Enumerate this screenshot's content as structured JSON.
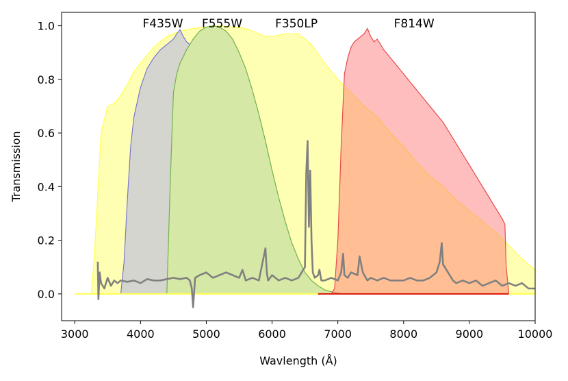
{
  "chart_data": {
    "type": "area",
    "xlabel": "Wavlength (Å)",
    "ylabel": "Transmission",
    "xlim": [
      2800,
      10000
    ],
    "ylim": [
      -0.1,
      1.05
    ],
    "x_ticks": [
      3000,
      4000,
      5000,
      6000,
      7000,
      8000,
      9000,
      10000
    ],
    "y_ticks": [
      "0.0",
      "0.2",
      "0.4",
      "0.6",
      "0.8",
      "1.0"
    ],
    "grid": false,
    "series": [
      {
        "name": "F350LP",
        "color": "#ffff4d",
        "fill": "#ffffb3",
        "label_x": 6370,
        "x": [
          3000,
          3250,
          3300,
          3400,
          3500,
          3550,
          3600,
          3700,
          3800,
          3900,
          4000,
          4200,
          4400,
          4600,
          4800,
          5000,
          5200,
          5400,
          5600,
          5800,
          5900,
          6000,
          6200,
          6400,
          6600,
          6800,
          7000,
          7200,
          7400,
          7600,
          7800,
          8000,
          8200,
          8400,
          8600,
          8800,
          9000,
          9200,
          9400,
          9600,
          9800,
          10000
        ],
        "y": [
          0.0,
          0.0,
          0.15,
          0.6,
          0.7,
          0.705,
          0.71,
          0.74,
          0.78,
          0.83,
          0.86,
          0.92,
          0.96,
          0.98,
          0.99,
          0.995,
          1.0,
          0.995,
          0.99,
          0.97,
          0.96,
          0.96,
          0.97,
          0.97,
          0.93,
          0.86,
          0.8,
          0.75,
          0.7,
          0.66,
          0.6,
          0.55,
          0.49,
          0.44,
          0.4,
          0.35,
          0.31,
          0.27,
          0.23,
          0.18,
          0.13,
          0.09
        ]
      },
      {
        "name": "F435W",
        "color": "#7777cc",
        "fill": "#d5d5cf",
        "label_x": 4340,
        "x": [
          3700,
          3750,
          3800,
          3850,
          3900,
          4000,
          4100,
          4200,
          4300,
          4400,
          4500,
          4550,
          4600,
          4650,
          4700,
          4750,
          4780,
          4800,
          4820
        ],
        "y": [
          0.0,
          0.12,
          0.35,
          0.55,
          0.66,
          0.77,
          0.84,
          0.88,
          0.91,
          0.93,
          0.95,
          0.97,
          0.985,
          0.96,
          0.94,
          0.93,
          0.85,
          0.3,
          0.0
        ]
      },
      {
        "name": "F555W",
        "color": "#70b24a",
        "fill": "#d6e8a5",
        "label_x": 5240,
        "x": [
          4400,
          4450,
          4500,
          4550,
          4600,
          4700,
          4800,
          4900,
          5000,
          5100,
          5200,
          5300,
          5400,
          5500,
          5600,
          5700,
          5800,
          5900,
          6000,
          6100,
          6200,
          6300,
          6400,
          6500,
          6600,
          6700,
          6800,
          6900,
          7000,
          7100
        ],
        "y": [
          0.0,
          0.4,
          0.75,
          0.82,
          0.86,
          0.91,
          0.95,
          0.98,
          0.995,
          1.0,
          0.995,
          0.98,
          0.95,
          0.9,
          0.84,
          0.76,
          0.67,
          0.57,
          0.46,
          0.36,
          0.27,
          0.19,
          0.13,
          0.08,
          0.05,
          0.03,
          0.015,
          0.008,
          0.003,
          0.0
        ]
      },
      {
        "name": "F814W",
        "color": "#e84a4a",
        "fill": "rgba(255,110,110,0.45)",
        "label_x": 8160,
        "x": [
          6700,
          6900,
          6950,
          7000,
          7050,
          7100,
          7150,
          7200,
          7250,
          7300,
          7400,
          7450,
          7500,
          7550,
          7600,
          7700,
          7800,
          7900,
          8000,
          8100,
          8200,
          8300,
          8400,
          8500,
          8600,
          8700,
          8800,
          8900,
          9000,
          9100,
          9200,
          9300,
          9400,
          9500,
          9540,
          9560,
          9600
        ],
        "y": [
          0.0,
          0.0,
          0.02,
          0.2,
          0.55,
          0.82,
          0.88,
          0.92,
          0.94,
          0.95,
          0.97,
          0.99,
          0.96,
          0.94,
          0.95,
          0.91,
          0.88,
          0.85,
          0.82,
          0.79,
          0.76,
          0.73,
          0.7,
          0.67,
          0.64,
          0.6,
          0.56,
          0.52,
          0.48,
          0.44,
          0.4,
          0.36,
          0.32,
          0.28,
          0.26,
          0.1,
          0.0
        ]
      }
    ],
    "spectrum": {
      "name": "spectrum",
      "color": "#808080",
      "x": [
        3350,
        3360,
        3380,
        3400,
        3450,
        3500,
        3550,
        3600,
        3650,
        3700,
        3800,
        3900,
        4000,
        4100,
        4200,
        4300,
        4400,
        4500,
        4600,
        4700,
        4750,
        4780,
        4800,
        4830,
        4900,
        5000,
        5100,
        5200,
        5300,
        5400,
        5500,
        5550,
        5600,
        5700,
        5800,
        5900,
        5920,
        5940,
        6000,
        6100,
        6200,
        6300,
        6400,
        6500,
        6520,
        6540,
        6560,
        6580,
        6600,
        6620,
        6650,
        6700,
        6720,
        6750,
        6800,
        6900,
        7000,
        7050,
        7080,
        7100,
        7150,
        7200,
        7300,
        7330,
        7380,
        7450,
        7500,
        7600,
        7700,
        7800,
        7900,
        8000,
        8100,
        8200,
        8300,
        8400,
        8500,
        8550,
        8580,
        8600,
        8650,
        8700,
        8750,
        8800,
        8900,
        9000,
        9100,
        9200,
        9300,
        9400,
        9500,
        9600,
        9700,
        9800,
        9900,
        10000
      ],
      "y": [
        0.12,
        -0.02,
        0.08,
        0.04,
        0.02,
        0.06,
        0.03,
        0.05,
        0.04,
        0.05,
        0.045,
        0.05,
        0.04,
        0.055,
        0.05,
        0.05,
        0.055,
        0.06,
        0.055,
        0.06,
        0.05,
        0.02,
        -0.05,
        0.06,
        0.07,
        0.08,
        0.06,
        0.07,
        0.08,
        0.07,
        0.06,
        0.09,
        0.05,
        0.06,
        0.05,
        0.17,
        0.08,
        0.05,
        0.07,
        0.05,
        0.06,
        0.05,
        0.06,
        0.1,
        0.45,
        0.57,
        0.25,
        0.46,
        0.2,
        0.08,
        0.06,
        0.07,
        0.09,
        0.05,
        0.05,
        0.06,
        0.05,
        0.08,
        0.15,
        0.07,
        0.06,
        0.08,
        0.07,
        0.14,
        0.08,
        0.05,
        0.06,
        0.05,
        0.06,
        0.05,
        0.05,
        0.05,
        0.06,
        0.05,
        0.05,
        0.06,
        0.08,
        0.12,
        0.19,
        0.11,
        0.09,
        0.07,
        0.05,
        0.04,
        0.05,
        0.04,
        0.05,
        0.03,
        0.04,
        0.05,
        0.03,
        0.04,
        0.03,
        0.04,
        0.02,
        0.02
      ]
    }
  }
}
